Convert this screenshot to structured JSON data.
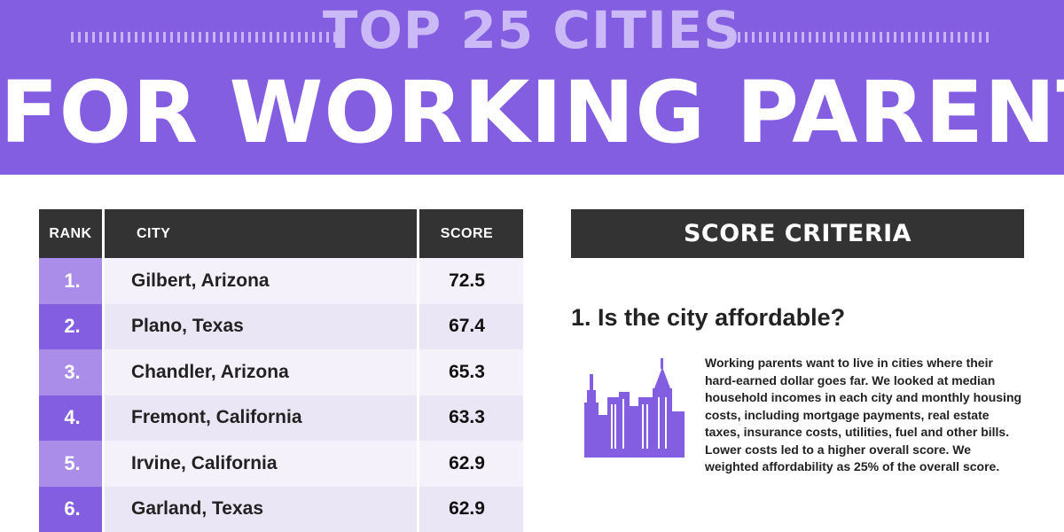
{
  "header": {
    "subtitle": "TOP 25 CITIES",
    "title": "FOR WORKING PARENTS"
  },
  "table": {
    "headers": {
      "rank": "RANK",
      "city": "CITY",
      "score": "SCORE"
    },
    "rows": [
      {
        "rank": "1.",
        "city": "Gilbert, Arizona",
        "score": "72.5"
      },
      {
        "rank": "2.",
        "city": "Plano, Texas",
        "score": "67.4"
      },
      {
        "rank": "3.",
        "city": "Chandler, Arizona",
        "score": "65.3"
      },
      {
        "rank": "4.",
        "city": "Fremont, California",
        "score": "63.3"
      },
      {
        "rank": "5.",
        "city": "Irvine, California",
        "score": "62.9"
      },
      {
        "rank": "6.",
        "city": "Garland, Texas",
        "score": "62.9"
      }
    ]
  },
  "criteria": {
    "heading": "SCORE CRITERIA",
    "item1": {
      "title": "1. Is the city affordable?",
      "icon": "city-skyline-icon",
      "text": "Working parents want to live in cities where their hard-earned dollar goes far. We looked at median household incomes in each city and monthly housing costs, including mortgage payments, real estate taxes, insurance costs, utilities, fuel and other bills. Lower costs led to a higher overall score. We weighted affordability as 25% of the overall score."
    }
  },
  "colors": {
    "purple": "#845ee0",
    "light_purple": "#a98de9",
    "dark": "#333333"
  }
}
